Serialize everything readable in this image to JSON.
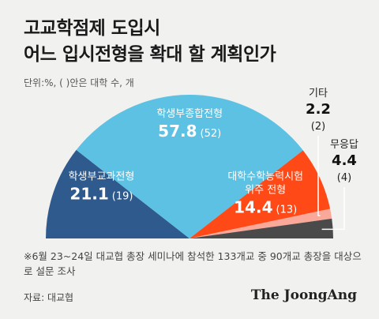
{
  "header": {
    "title_line1": "고교학점제 도입시",
    "title_line2": "어느 입시전형을 확대 할 계획인가",
    "unit_note": "단위:%, ( )안은 대학 수, 개"
  },
  "chart_data": {
    "type": "pie",
    "variant": "semicircle",
    "slices": [
      {
        "name": "학생부교과전형",
        "value": 21.1,
        "count": "(19)",
        "color": "#2e5a8e",
        "label_color": "#ffffff"
      },
      {
        "name": "학생부종합전형",
        "value": 57.8,
        "count": "(52)",
        "color": "#5cc1e3",
        "label_color": "#ffffff"
      },
      {
        "name": "대학수학능력시험 위주 전형",
        "name_lines": [
          "대학수학능력시험",
          "위주 전형"
        ],
        "value": 14.4,
        "count": "(13)",
        "color": "#ff4a17",
        "label_color": "#ffffff"
      },
      {
        "name": "기타",
        "value": 2.2,
        "count": "(2)",
        "color": "#f9a89a",
        "label_color": "#111111"
      },
      {
        "name": "무응답",
        "value": 4.4,
        "count": "(4)",
        "color": "#4a4a4a",
        "label_color": "#111111"
      }
    ]
  },
  "footnote": "※6월 23~24일 대교협 총장 세미나에 참석한 133개교 중 90개교 총장을 대상으로 설문 조사",
  "source": "자료: 대교협",
  "brand": "The JoongAng"
}
